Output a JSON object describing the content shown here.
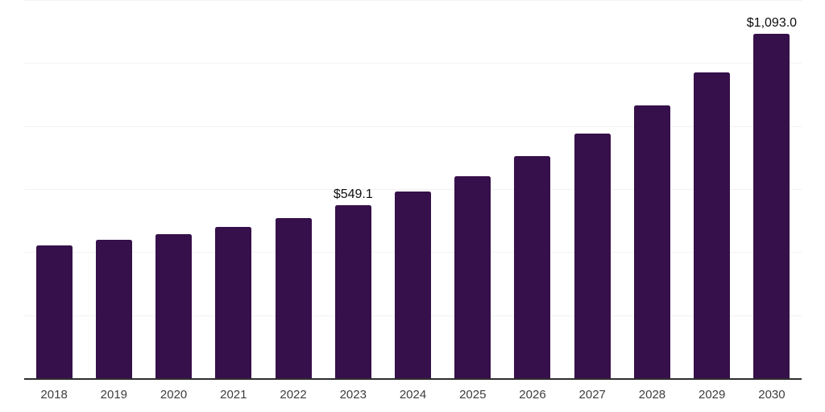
{
  "chart_data": {
    "type": "bar",
    "title": "",
    "xlabel": "",
    "ylabel": "",
    "categories": [
      "2018",
      "2019",
      "2020",
      "2021",
      "2022",
      "2023",
      "2024",
      "2025",
      "2026",
      "2027",
      "2028",
      "2029",
      "2030"
    ],
    "values": [
      421,
      439,
      457,
      480,
      508,
      549.1,
      592,
      641,
      705,
      776,
      866,
      970,
      1093.0
    ],
    "data_labels": [
      null,
      null,
      null,
      null,
      null,
      "$549.1",
      null,
      null,
      null,
      null,
      null,
      null,
      "$1,093.0"
    ],
    "ylim": [
      0,
      1200
    ],
    "gridline_step": 200,
    "grid": true,
    "legend_position": "none",
    "colors": {
      "bar": "#36104a",
      "axis_line": "#2e2e2e",
      "gridline": "#f2f2f2",
      "tick_label": "#3d3d3d",
      "data_label": "#0d0d0d",
      "background": "#ffffff"
    }
  }
}
